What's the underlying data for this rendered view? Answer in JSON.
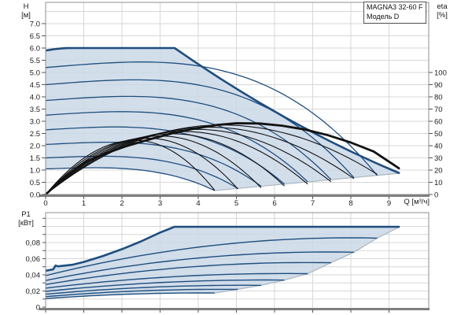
{
  "window": {
    "title_box": {
      "line1": "MAGNA3 32-60 F",
      "line2": "Модель D"
    }
  },
  "colors": {
    "fill": "#cbd8e8",
    "curve_blue": "#1e4e7e",
    "efficiency_black": "#121212",
    "grid": "#d7d7d7",
    "border": "#8f8f8f",
    "axis_heavy": "#7f7f7f",
    "edge_gray": "#a9b5c1",
    "text": "#1a1a1a"
  },
  "chart_data": [
    {
      "type": "line",
      "name": "head-flow-performance-chart",
      "title": "MAGNA3 32-60 F",
      "subtitle": "Модель D",
      "x_axis": {
        "label": "Q [м³/ч]",
        "range": [
          0,
          10.04
        ],
        "tick_values": [
          0,
          1,
          2,
          3,
          4,
          5,
          6,
          7,
          8,
          9
        ],
        "tick_labels": [
          "0",
          "1",
          "2",
          "3",
          "4",
          "5",
          "6",
          "7",
          "8",
          "9"
        ],
        "grid": true
      },
      "y_axis_left": {
        "label": "H",
        "unit": "[м]",
        "range": [
          0,
          7.87
        ],
        "grid_step": 0.5,
        "tick_values": [
          0,
          0.5,
          1,
          1.5,
          2,
          2.5,
          3,
          3.5,
          4,
          4.5,
          5,
          5.5,
          6,
          6.5,
          7
        ],
        "tick_labels": [
          "0.0",
          "0.5",
          "1.0",
          "1.5",
          "2.0",
          "2.5",
          "3.0",
          "3.5",
          "4.0",
          "4.5",
          "5.0",
          "5.5",
          "6.0",
          "6.5",
          "7.0"
        ]
      },
      "y_axis_right": {
        "label": "eta",
        "unit": "[%]",
        "eta_per_m": 20,
        "tick_values": [
          0,
          10,
          20,
          30,
          40,
          50,
          60,
          70,
          80,
          90,
          100
        ],
        "tick_labels": [
          "0",
          "10",
          "20",
          "30",
          "40",
          "50",
          "60",
          "70",
          "80",
          "90",
          "100"
        ]
      },
      "max_speed_curve": {
        "h_at_zero": 5.9,
        "plateau_h": 6.0,
        "plateau_q_start": 0.65,
        "plateau_q_end": 3.38,
        "q_max": 9.28,
        "h_at_qmax": 0.87
      },
      "speed_curves": [
        {
          "h0": 5.2,
          "qe": 8.69,
          "he": 0.78
        },
        {
          "h0": 4.5,
          "qe": 8.08,
          "he": 0.69
        },
        {
          "h0": 3.85,
          "qe": 7.48,
          "he": 0.61
        },
        {
          "h0": 3.25,
          "qe": 6.87,
          "he": 0.52
        },
        {
          "h0": 2.65,
          "qe": 6.26,
          "he": 0.43
        },
        {
          "h0": 2.05,
          "qe": 5.65,
          "he": 0.34
        },
        {
          "h0": 1.5,
          "qe": 5.04,
          "he": 0.25
        },
        {
          "h0": 1.05,
          "qe": 4.43,
          "he": 0.16
        }
      ],
      "efficiency_curve_max": [
        [
          0,
          0
        ],
        [
          0.35,
          10
        ],
        [
          0.7,
          19
        ],
        [
          1.1,
          27.5
        ],
        [
          1.6,
          34
        ],
        [
          2.1,
          39.5
        ],
        [
          2.7,
          45
        ],
        [
          3.3,
          50
        ],
        [
          3.9,
          54
        ],
        [
          4.5,
          57
        ],
        [
          5.0,
          58.4
        ],
        [
          5.6,
          58.2
        ],
        [
          6.2,
          56.4
        ],
        [
          6.8,
          53.2
        ],
        [
          7.4,
          48.6
        ],
        [
          8.0,
          42.6
        ],
        [
          8.6,
          35.2
        ],
        [
          9.26,
          21.5
        ]
      ],
      "efficiency_curves": [
        {
          "peak_eta": 57.0,
          "peak_q": 4.61,
          "qe": 8.69,
          "end_eta": 16.5
        },
        {
          "peak_eta": 55.2,
          "peak_q": 4.28,
          "qe": 8.08,
          "end_eta": 13.0
        },
        {
          "peak_eta": 53.4,
          "peak_q": 3.96,
          "qe": 7.48,
          "end_eta": 10.5
        },
        {
          "peak_eta": 51.6,
          "peak_q": 3.64,
          "qe": 6.87,
          "end_eta": 8.5
        },
        {
          "peak_eta": 49.8,
          "peak_q": 3.32,
          "qe": 6.26,
          "end_eta": 7.0
        },
        {
          "peak_eta": 48.0,
          "peak_q": 2.99,
          "qe": 5.65,
          "end_eta": 5.5
        },
        {
          "peak_eta": 46.2,
          "peak_q": 2.67,
          "qe": 5.04,
          "end_eta": 4.5
        },
        {
          "peak_eta": 44.4,
          "peak_q": 2.35,
          "qe": 4.43,
          "end_eta": 3.5
        }
      ]
    },
    {
      "type": "line",
      "name": "power-flow-chart",
      "y_axis_left": {
        "label": "P1",
        "unit": "[кВт]",
        "range": [
          0,
          0.117
        ],
        "grid_step": 0.01,
        "tick_values": [
          0,
          0.02,
          0.04,
          0.06,
          0.08
        ],
        "tick_labels": [
          "0",
          "0,02",
          "0,04",
          "0,06",
          "0,08"
        ]
      },
      "x_axis": {
        "range": [
          0,
          10.04
        ],
        "tick_values": [
          0,
          1,
          2,
          3,
          4,
          5,
          6,
          7,
          8,
          9
        ],
        "grid": true
      },
      "max_power_curve": {
        "rise_points": [
          [
            0,
            0.045
          ],
          [
            0.2,
            0.0468
          ],
          [
            0.26,
            0.0515
          ],
          [
            0.33,
            0.0505
          ],
          [
            0.7,
            0.0525
          ],
          [
            1.0,
            0.056
          ],
          [
            1.5,
            0.0633
          ],
          [
            2.0,
            0.0718
          ],
          [
            2.5,
            0.0815
          ],
          [
            3.0,
            0.0924
          ],
          [
            3.38,
            0.0995
          ]
        ],
        "plateau_p": 0.0995,
        "q_max": 9.28
      },
      "power_curves": [
        {
          "p0": 0.039,
          "qe": 8.69,
          "pe": 0.0855
        },
        {
          "p0": 0.033,
          "qe": 8.08,
          "pe": 0.068
        },
        {
          "p0": 0.028,
          "qe": 7.48,
          "pe": 0.055
        },
        {
          "p0": 0.0235,
          "qe": 6.87,
          "pe": 0.0415
        },
        {
          "p0": 0.0195,
          "qe": 6.26,
          "pe": 0.0335
        },
        {
          "p0": 0.016,
          "qe": 5.65,
          "pe": 0.027
        },
        {
          "p0": 0.013,
          "qe": 5.04,
          "pe": 0.022
        },
        {
          "p0": 0.0105,
          "qe": 4.43,
          "pe": 0.0175
        }
      ]
    }
  ]
}
